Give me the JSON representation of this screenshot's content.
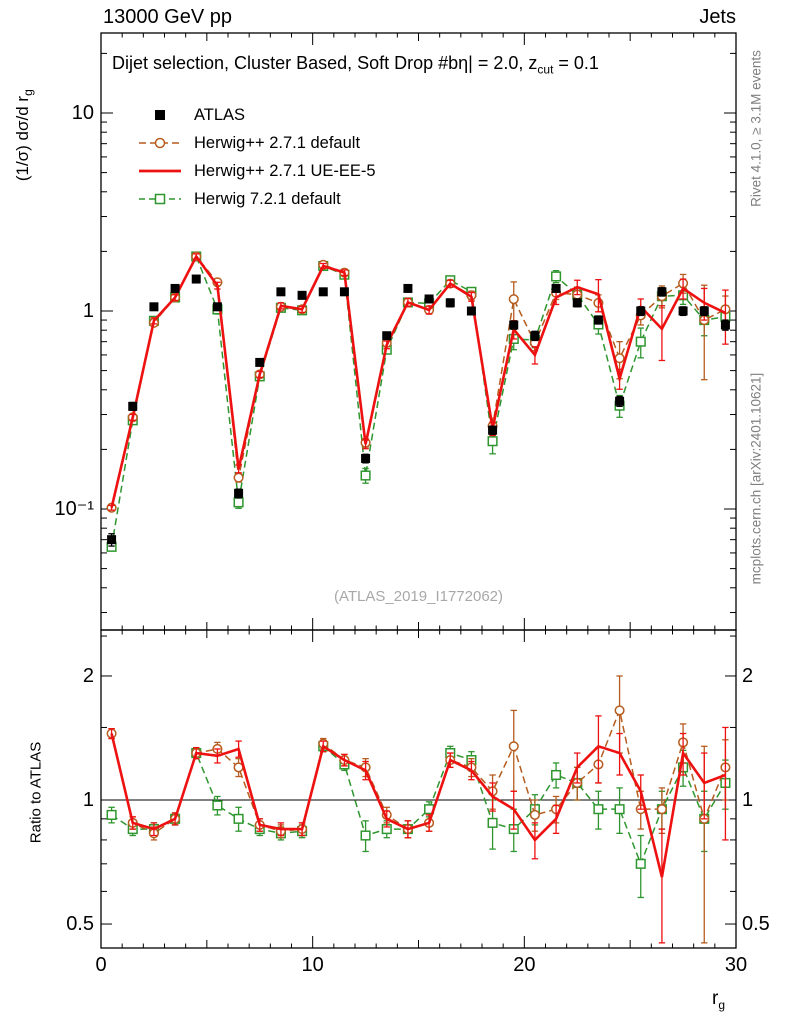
{
  "header": {
    "left_title": "13000 GeV pp",
    "right_title": "Jets"
  },
  "panel_title": {
    "pre": "Dijet selection, Cluster Based, Soft Drop #bη| = 2.0, z",
    "sub": "cut",
    "post": " = 0.1"
  },
  "legend": [
    {
      "label": "ATLAS"
    },
    {
      "label": "Herwig++ 2.7.1 default"
    },
    {
      "label": "Herwig++ 2.7.1 UE-EE-5"
    },
    {
      "label": "Herwig 7.2.1 default"
    }
  ],
  "watermark": "(ATLAS_2019_I1772062)",
  "side_notes": {
    "top": "Rivet 4.1.0, ≥ 3.1M events",
    "bottom": "mcplots.cern.ch [arXiv:2401.10621]"
  },
  "axes": {
    "top_ylabel": {
      "pre": "(1/σ) dσ/d r",
      "sub": "g"
    },
    "ratio_ylabel": "Ratio to ATLAS",
    "xlabel": {
      "pre": "r",
      "sub": "g"
    },
    "x_ticks": [
      {
        "label": "0",
        "value": 0
      },
      {
        "label": "10",
        "value": 10
      },
      {
        "label": "20",
        "value": 20
      },
      {
        "label": "30",
        "value": 30
      }
    ],
    "top_y_ticks": [
      {
        "label": "10",
        "value": 10
      },
      {
        "label": "1",
        "value": 1
      },
      {
        "label": "10⁻¹",
        "value": 0.1
      }
    ],
    "ratio_y_ticks": [
      {
        "label": "2",
        "value": 2
      },
      {
        "label": "1",
        "value": 1
      },
      {
        "label": "0.5",
        "value": 0.5
      }
    ]
  },
  "chart_data": {
    "type": "line",
    "title": "Dijet selection, Cluster Based, Soft Drop #bη| = 2.0, zcut = 0.1",
    "xlabel": "rg",
    "ylabel_top": "(1/σ) dσ/d rg",
    "ylabel_bottom": "Ratio to ATLAS",
    "x_range": [
      0,
      30
    ],
    "top_y_scale": "log",
    "top_y_range": [
      0.0245,
      25
    ],
    "ratio_y_scale": "log",
    "ratio_y_range": [
      0.437,
      2.58
    ],
    "ratio_ref_line": 1,
    "x": [
      0.5,
      1.5,
      2.5,
      3.5,
      4.5,
      5.5,
      6.5,
      7.5,
      8.5,
      9.5,
      10.5,
      11.5,
      12.5,
      13.5,
      14.5,
      15.5,
      16.5,
      17.5,
      18.5,
      19.5,
      20.5,
      21.5,
      22.5,
      23.5,
      24.5,
      25.5,
      26.5,
      27.5,
      28.5,
      29.5
    ],
    "series": [
      {
        "name": "ATLAS",
        "role": "reference-data",
        "color": "#000000",
        "marker": "filled-square",
        "line": "none",
        "values": [
          0.07,
          0.33,
          1.05,
          1.3,
          1.45,
          1.05,
          0.12,
          0.55,
          1.25,
          1.2,
          1.25,
          1.25,
          0.18,
          0.75,
          1.3,
          1.15,
          1.1,
          1.0,
          0.25,
          0.85,
          0.75,
          1.3,
          1.1,
          0.9,
          0.35,
          1.0,
          1.25,
          1.0,
          1.0,
          0.85
        ],
        "err": [
          0.005,
          0.015,
          0.04,
          0.05,
          0.05,
          0.04,
          0.006,
          0.02,
          0.05,
          0.05,
          0.05,
          0.05,
          0.009,
          0.03,
          0.05,
          0.05,
          0.05,
          0.04,
          0.012,
          0.04,
          0.04,
          0.05,
          0.05,
          0.04,
          0.02,
          0.05,
          0.06,
          0.05,
          0.05,
          0.05
        ]
      },
      {
        "name": "Herwig++ 2.7.1 default",
        "role": "mc-prediction",
        "color": "#b65c1f",
        "marker": "open-circle",
        "line": "dashed",
        "ratio": [
          1.45,
          0.88,
          0.83,
          0.9,
          1.3,
          1.33,
          1.2,
          0.87,
          0.84,
          0.85,
          1.37,
          1.25,
          1.2,
          0.92,
          0.85,
          0.88,
          1.25,
          1.2,
          1.05,
          1.35,
          0.92,
          0.95,
          1.1,
          1.22,
          1.65,
          0.95,
          0.95,
          1.38,
          0.9,
          1.2
        ],
        "ratio_err": [
          0.04,
          0.03,
          0.03,
          0.03,
          0.04,
          0.05,
          0.06,
          0.03,
          0.03,
          0.03,
          0.04,
          0.04,
          0.06,
          0.04,
          0.04,
          0.04,
          0.05,
          0.06,
          0.1,
          0.3,
          0.08,
          0.07,
          0.1,
          0.12,
          0.35,
          0.1,
          0.12,
          0.15,
          0.45,
          0.2
        ]
      },
      {
        "name": "Herwig++ 2.7.1 UE-EE-5",
        "role": "mc-prediction",
        "color": "#ee1111",
        "marker": "none",
        "line": "solid",
        "ratio": [
          1.45,
          0.88,
          0.85,
          0.9,
          1.3,
          1.28,
          1.33,
          0.87,
          0.85,
          0.85,
          1.35,
          1.25,
          1.18,
          0.9,
          0.85,
          0.88,
          1.25,
          1.18,
          1.02,
          0.95,
          0.8,
          0.9,
          1.2,
          1.35,
          1.3,
          1.05,
          0.65,
          1.3,
          1.1,
          1.15
        ],
        "ratio_err": [
          0.04,
          0.03,
          0.03,
          0.03,
          0.04,
          0.05,
          0.06,
          0.03,
          0.03,
          0.03,
          0.04,
          0.04,
          0.06,
          0.04,
          0.04,
          0.04,
          0.05,
          0.06,
          0.08,
          0.1,
          0.08,
          0.07,
          0.1,
          0.25,
          0.15,
          0.1,
          0.2,
          0.15,
          0.2,
          0.35
        ]
      },
      {
        "name": "Herwig 7.2.1 default",
        "role": "mc-prediction",
        "color": "#2f962f",
        "marker": "open-square",
        "line": "dashed",
        "ratio": [
          0.92,
          0.85,
          0.85,
          0.9,
          1.3,
          0.97,
          0.9,
          0.85,
          0.83,
          0.84,
          1.35,
          1.22,
          0.82,
          0.85,
          0.85,
          0.95,
          1.3,
          1.25,
          0.88,
          0.85,
          0.95,
          1.15,
          1.1,
          0.95,
          0.95,
          0.7,
          0.95,
          1.2,
          0.9,
          1.1
        ],
        "ratio_err": [
          0.04,
          0.03,
          0.03,
          0.03,
          0.04,
          0.05,
          0.06,
          0.03,
          0.03,
          0.03,
          0.04,
          0.04,
          0.07,
          0.04,
          0.04,
          0.04,
          0.05,
          0.06,
          0.12,
          0.1,
          0.08,
          0.08,
          0.1,
          0.1,
          0.12,
          0.12,
          0.1,
          0.12,
          0.15,
          0.15
        ]
      }
    ]
  }
}
